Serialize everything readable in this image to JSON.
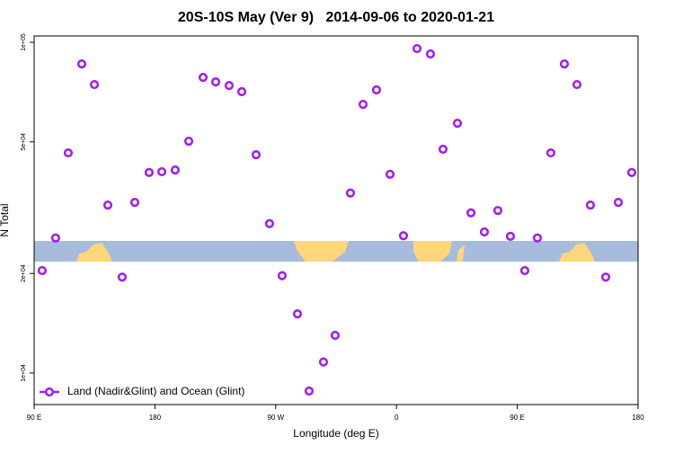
{
  "chart_data": {
    "type": "scatter",
    "title": "20S-10S May (Ver 9)   2014-09-06 to 2020-01-21",
    "x_label": "Longitude (deg E)",
    "y_label": "N Total",
    "ylog": true,
    "legend": "bottom-left",
    "xlim": [
      90,
      540
    ],
    "ylim": [
      8030,
      104500
    ],
    "xticks": [
      {
        "value": 90,
        "label": "90 E"
      },
      180,
      {
        "value": 270,
        "label": "90 W"
      },
      {
        "value": 360,
        "label": "0"
      },
      {
        "value": 450,
        "label": "90 E"
      },
      {
        "value": 540,
        "label": "180"
      }
    ],
    "yticks": [
      {
        "value": 10000,
        "label": "1e+04"
      },
      {
        "value": 20000,
        "label": "2e+04"
      },
      {
        "value": 50000,
        "label": "5e+04"
      },
      {
        "value": 100000,
        "label": "1e+05"
      }
    ],
    "series": [
      {
        "name": "Land (Nadir&Glint) and Ocean (Glint)",
        "color": "#a020f0",
        "x": [
          96,
          106,
          115.4,
          125.5,
          134.9,
          144.9,
          155.6,
          165,
          175.7,
          185.1,
          195.1,
          205.2,
          215.9,
          225.3,
          235.3,
          244.7,
          255.4,
          265.4,
          274.8,
          286.2,
          294.9,
          305.6,
          314.3,
          325.7,
          335.1,
          345.1,
          355.2,
          365.2,
          375.3,
          385.3,
          394.7,
          405.4,
          415.5,
          425.5,
          435.5,
          444.9,
          455.6,
          465,
          475,
          485.1,
          494.5,
          504.5,
          515.9,
          525.3,
          535.3
        ],
        "values": [
          20400,
          25600,
          46300,
          86000,
          74500,
          32200,
          19500,
          32800,
          40400,
          40600,
          41100,
          50200,
          78300,
          75900,
          74000,
          70900,
          45700,
          28300,
          19700,
          15100,
          8820,
          10800,
          13000,
          35000,
          64900,
          71800,
          39900,
          26000,
          95700,
          92200,
          47500,
          56900,
          30500,
          26700,
          31000,
          25900,
          20400,
          25600,
          46300,
          86000,
          74500,
          32200,
          19500,
          32800,
          40400
        ]
      }
    ]
  }
}
